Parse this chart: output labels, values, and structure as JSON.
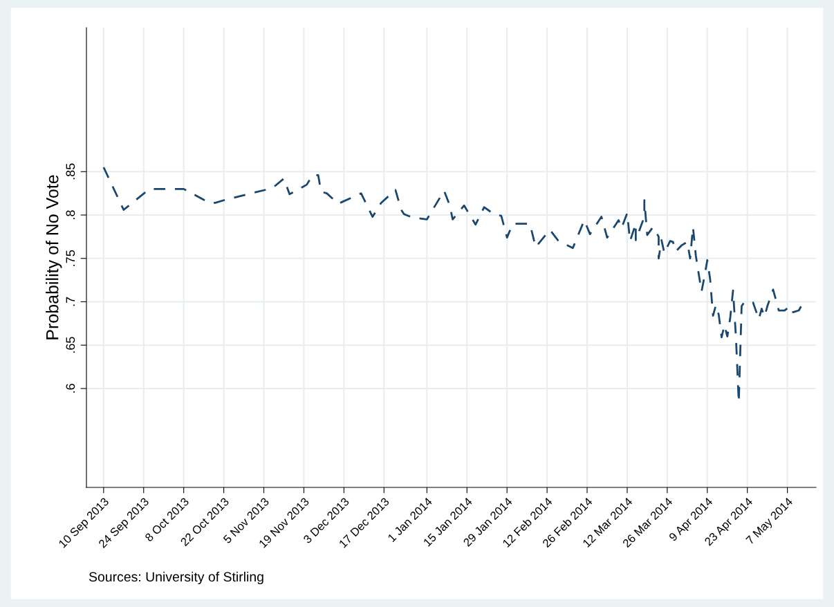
{
  "chart_data": {
    "type": "line",
    "ylabel": "Probability of No Vote",
    "annotations": [
      "Sources: University of Stirling"
    ],
    "x": [
      "2013-09-10",
      "2013-09-17",
      "2013-09-26",
      "2013-10-08",
      "2013-10-17",
      "2013-10-19",
      "2013-10-23",
      "2013-11-08",
      "2013-11-12",
      "2013-11-14",
      "2013-11-20",
      "2013-11-22",
      "2013-11-24",
      "2013-11-25",
      "2013-11-27",
      "2013-12-01",
      "2013-12-09",
      "2013-12-13",
      "2013-12-16",
      "2013-12-21",
      "2013-12-23",
      "2013-12-24",
      "2013-12-27",
      "2014-01-01",
      "2014-01-07",
      "2014-01-09",
      "2014-01-10",
      "2014-01-11",
      "2014-01-14",
      "2014-01-18",
      "2014-01-21",
      "2014-01-24",
      "2014-01-27",
      "2014-01-29",
      "2014-01-31",
      "2014-02-06",
      "2014-02-08",
      "2014-02-13",
      "2014-02-16",
      "2014-02-21",
      "2014-02-25",
      "2014-02-27",
      "2014-03-03",
      "2014-03-05",
      "2014-03-09",
      "2014-03-10",
      "2014-03-12",
      "2014-03-13",
      "2014-03-15",
      "2014-03-15",
      "2014-03-18",
      "2014-03-18",
      "2014-03-19",
      "2014-03-21",
      "2014-03-23",
      "2014-03-23",
      "2014-03-24",
      "2014-03-25",
      "2014-03-27",
      "2014-03-28",
      "2014-03-29",
      "2014-03-31",
      "2014-04-02",
      "2014-04-03",
      "2014-04-04",
      "2014-04-05",
      "2014-04-06",
      "2014-04-07",
      "2014-04-08",
      "2014-04-09",
      "2014-04-10",
      "2014-04-11",
      "2014-04-12",
      "2014-04-13",
      "2014-04-14",
      "2014-04-15",
      "2014-04-16",
      "2014-04-17",
      "2014-04-18",
      "2014-04-19",
      "2014-04-20",
      "2014-04-21",
      "2014-04-22",
      "2014-04-24",
      "2014-04-25",
      "2014-04-27",
      "2014-04-28",
      "2014-04-29",
      "2014-04-30",
      "2014-05-02",
      "2014-05-04",
      "2014-05-06",
      "2014-05-08",
      "2014-05-09",
      "2014-05-11",
      "2014-05-12"
    ],
    "series": [
      {
        "color": "#1a476f",
        "line_style": "dashed",
        "values": [
          0.855,
          0.806,
          0.83,
          0.83,
          0.814,
          0.814,
          0.818,
          0.831,
          0.842,
          0.824,
          0.835,
          0.846,
          0.846,
          0.827,
          0.825,
          0.813,
          0.825,
          0.798,
          0.814,
          0.829,
          0.806,
          0.801,
          0.797,
          0.795,
          0.828,
          0.811,
          0.795,
          0.799,
          0.811,
          0.789,
          0.809,
          0.802,
          0.799,
          0.774,
          0.79,
          0.79,
          0.763,
          0.783,
          0.77,
          0.762,
          0.794,
          0.778,
          0.798,
          0.774,
          0.794,
          0.785,
          0.802,
          0.77,
          0.79,
          0.771,
          0.798,
          0.817,
          0.777,
          0.786,
          0.775,
          0.75,
          0.771,
          0.756,
          0.77,
          0.769,
          0.758,
          0.765,
          0.769,
          0.75,
          0.786,
          0.753,
          0.732,
          0.712,
          0.729,
          0.748,
          0.726,
          0.684,
          0.696,
          0.685,
          0.659,
          0.673,
          0.66,
          0.681,
          0.713,
          0.66,
          0.584,
          0.695,
          0.7,
          0.699,
          0.699,
          0.68,
          0.692,
          0.683,
          0.695,
          0.714,
          0.69,
          0.69,
          0.695,
          0.688,
          0.69,
          0.696
        ]
      }
    ],
    "xlim": [
      "2013-09-04",
      "2014-05-17"
    ],
    "xticks": [
      {
        "value": "2013-09-10",
        "label": "10 Sep 2013"
      },
      {
        "value": "2013-09-24",
        "label": "24 Sep 2013"
      },
      {
        "value": "2013-10-08",
        "label": "8 Oct 2013"
      },
      {
        "value": "2013-10-22",
        "label": "22 Oct 2013"
      },
      {
        "value": "2013-11-05",
        "label": "5 Nov 2013"
      },
      {
        "value": "2013-11-19",
        "label": "19 Nov 2013"
      },
      {
        "value": "2013-12-03",
        "label": "3 Dec 2013"
      },
      {
        "value": "2013-12-17",
        "label": "17 Dec 2013"
      },
      {
        "value": "2014-01-01",
        "label": "1 Jan 2014"
      },
      {
        "value": "2014-01-15",
        "label": "15 Jan 2014"
      },
      {
        "value": "2014-01-29",
        "label": "29 Jan 2014"
      },
      {
        "value": "2014-02-12",
        "label": "12 Feb 2014"
      },
      {
        "value": "2014-02-26",
        "label": "26 Feb 2014"
      },
      {
        "value": "2014-03-12",
        "label": "12 Mar 2014"
      },
      {
        "value": "2014-03-26",
        "label": "26 Mar 2014"
      },
      {
        "value": "2014-04-09",
        "label": "9 Apr 2014"
      },
      {
        "value": "2014-04-23",
        "label": "23 Apr 2014"
      },
      {
        "value": "2014-05-07",
        "label": "7 May 2014"
      }
    ],
    "ylim": [
      0.486,
      1.016
    ],
    "yticks": [
      {
        "value": 0.6,
        "label": ".6"
      },
      {
        "value": 0.65,
        "label": ".65"
      },
      {
        "value": 0.7,
        "label": ".7"
      },
      {
        "value": 0.75,
        "label": ".75"
      },
      {
        "value": 0.8,
        "label": ".8"
      },
      {
        "value": 0.85,
        "label": ".85"
      }
    ],
    "grid": true,
    "marker": "none"
  }
}
